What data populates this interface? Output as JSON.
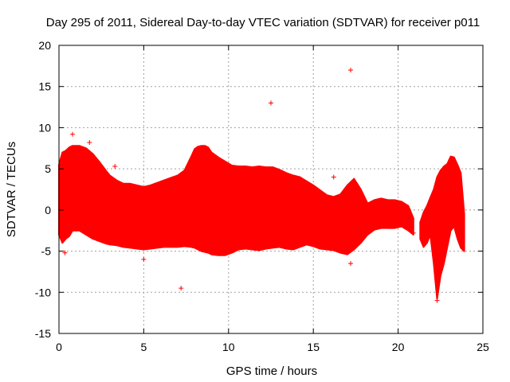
{
  "chart_data": {
    "type": "scatter",
    "title": "Day 295 of 2011, Sidereal Day-to-day VTEC variation (SDTVAR) for receiver p011",
    "xlabel": "GPS time / hours",
    "ylabel": "SDTVAR / TECUs",
    "xlim": [
      0,
      25
    ],
    "ylim": [
      -15,
      20
    ],
    "xticks": [
      0,
      5,
      10,
      15,
      20,
      25
    ],
    "yticks": [
      -15,
      -10,
      -5,
      0,
      5,
      10,
      15,
      20
    ],
    "grid": true,
    "marker": "+",
    "color": "#ff0000",
    "envelope": {
      "x": [
        0.0,
        0.2,
        0.4,
        0.6,
        0.8,
        1.2,
        1.6,
        2.0,
        2.4,
        2.8,
        3.0,
        3.4,
        3.8,
        4.2,
        4.6,
        5.0,
        5.4,
        5.8,
        6.2,
        6.6,
        7.0,
        7.4,
        7.8,
        8.0,
        8.2,
        8.4,
        8.6,
        8.8,
        9.0,
        9.4,
        9.8,
        10.2,
        10.6,
        11.0,
        11.4,
        11.8,
        12.2,
        12.6,
        13.0,
        13.4,
        13.8,
        14.2,
        14.6,
        15.0,
        15.4,
        15.8,
        16.2,
        16.6,
        17.0,
        17.4,
        17.8,
        18.2,
        18.6,
        19.0,
        19.4,
        19.8,
        20.2,
        20.6,
        20.9
      ],
      "upper": [
        5.5,
        7.0,
        7.2,
        7.6,
        7.8,
        7.8,
        7.5,
        6.8,
        5.8,
        4.7,
        4.2,
        3.6,
        3.2,
        3.2,
        3.0,
        2.8,
        3.0,
        3.3,
        3.6,
        3.9,
        4.2,
        4.8,
        6.5,
        7.4,
        7.7,
        7.8,
        7.8,
        7.6,
        7.0,
        6.4,
        5.9,
        5.4,
        5.3,
        5.3,
        5.2,
        5.3,
        5.2,
        5.2,
        4.9,
        4.5,
        4.2,
        4.0,
        3.5,
        3.0,
        2.4,
        1.8,
        1.6,
        1.9,
        3.0,
        3.8,
        2.5,
        0.8,
        1.2,
        1.4,
        1.2,
        1.2,
        1.0,
        0.5,
        -1.0
      ],
      "lower": [
        -3.0,
        -4.0,
        -3.5,
        -3.2,
        -2.5,
        -2.5,
        -3.0,
        -3.5,
        -3.8,
        -4.1,
        -4.2,
        -4.3,
        -4.5,
        -4.6,
        -4.7,
        -4.8,
        -4.7,
        -4.6,
        -4.5,
        -4.5,
        -4.5,
        -4.4,
        -4.5,
        -4.6,
        -4.8,
        -5.0,
        -5.1,
        -5.2,
        -5.4,
        -5.5,
        -5.5,
        -5.2,
        -4.8,
        -4.7,
        -4.8,
        -4.9,
        -4.7,
        -4.6,
        -4.5,
        -4.7,
        -4.8,
        -4.5,
        -4.2,
        -4.4,
        -4.7,
        -4.8,
        -4.9,
        -5.2,
        -5.4,
        -4.8,
        -4.0,
        -3.0,
        -2.4,
        -2.2,
        -2.2,
        -2.2,
        -2.0,
        -2.5,
        -3.0
      ]
    },
    "late_segment": {
      "x": [
        21.3,
        21.5,
        21.7,
        21.9,
        22.1,
        22.3,
        22.5,
        22.7,
        22.9,
        23.1,
        23.3,
        23.5,
        23.7,
        23.9
      ],
      "upper": [
        -1.5,
        -0.3,
        0.5,
        1.5,
        2.5,
        4.0,
        4.8,
        5.3,
        5.6,
        6.5,
        6.4,
        5.5,
        4.5,
        -0.5
      ],
      "lower": [
        -3.5,
        -4.5,
        -4.0,
        -3.0,
        -6.5,
        -10.8,
        -8.0,
        -6.5,
        -4.5,
        -2.5,
        -2.0,
        -3.5,
        -4.6,
        -5.0
      ]
    },
    "outliers": {
      "x": [
        7.2,
        12.5,
        17.2,
        0.8,
        1.8,
        0.35,
        5.0,
        3.3,
        17.2,
        22.3,
        23.8,
        16.2,
        20.9
      ],
      "y": [
        -9.5,
        13.0,
        17.0,
        9.2,
        8.2,
        -5.2,
        -6.0,
        5.3,
        -6.5,
        -11.0,
        -2.8,
        4.0,
        -2.8
      ]
    }
  }
}
